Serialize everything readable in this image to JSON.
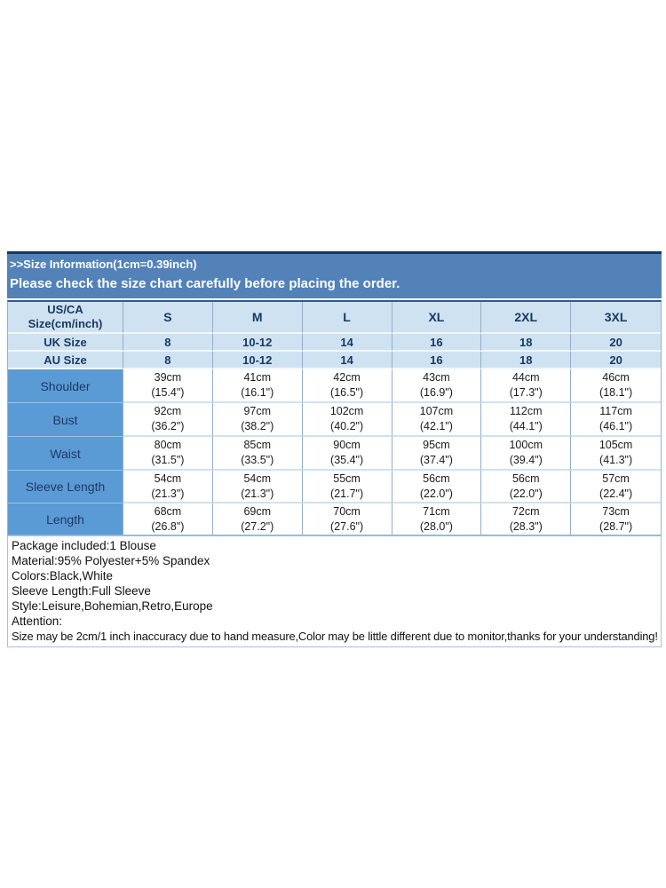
{
  "colors": {
    "band_blue": "#5282B8",
    "band_top_border": "#17375E",
    "light_row_blue": "#CFE2F2",
    "label_column_blue": "#5B9BD5",
    "grid_border": "#94AECB",
    "details_border": "#9DC3E6"
  },
  "header": {
    "line1": ">>Size Information(1cm=0.39inch)",
    "line2": "Please check the size chart carefully before placing the order."
  },
  "size_table": {
    "corner": {
      "line1": "US/CA",
      "line2": "Size(cm/inch)"
    },
    "columns": [
      "S",
      "M",
      "L",
      "XL",
      "2XL",
      "3XL"
    ],
    "size_rows": [
      {
        "label": "UK Size",
        "values": [
          "8",
          "10-12",
          "14",
          "16",
          "18",
          "20"
        ]
      },
      {
        "label": "AU Size",
        "values": [
          "8",
          "10-12",
          "14",
          "16",
          "18",
          "20"
        ]
      }
    ],
    "measure_rows": [
      {
        "label": "Shoulder",
        "cm": [
          "39cm",
          "41cm",
          "42cm",
          "43cm",
          "44cm",
          "46cm"
        ],
        "inch": [
          "(15.4\")",
          "(16.1\")",
          "(16.5\")",
          "(16.9\")",
          "(17.3\")",
          "(18.1\")"
        ]
      },
      {
        "label": "Bust",
        "cm": [
          "92cm",
          "97cm",
          "102cm",
          "107cm",
          "112cm",
          "117cm"
        ],
        "inch": [
          "(36.2\")",
          "(38.2\")",
          "(40.2\")",
          "(42.1\")",
          "(44.1\")",
          "(46.1\")"
        ]
      },
      {
        "label": "Waist",
        "cm": [
          "80cm",
          "85cm",
          "90cm",
          "95cm",
          "100cm",
          "105cm"
        ],
        "inch": [
          "(31.5\")",
          "(33.5\")",
          "(35.4\")",
          "(37.4\")",
          "(39.4\")",
          "(41.3\")"
        ]
      },
      {
        "label": "Sleeve Length",
        "cm": [
          "54cm",
          "54cm",
          "55cm",
          "56cm",
          "56cm",
          "57cm"
        ],
        "inch": [
          "(21.3\")",
          "(21.3\")",
          "(21.7\")",
          "(22.0\")",
          "(22.0\")",
          "(22.4\")"
        ]
      },
      {
        "label": "Length",
        "cm": [
          "68cm",
          "69cm",
          "70cm",
          "71cm",
          "72cm",
          "73cm"
        ],
        "inch": [
          "(26.8\")",
          "(27.2\")",
          "(27.6\")",
          "(28.0\")",
          "(28.3\")",
          "(28.7\")"
        ]
      }
    ]
  },
  "details": {
    "lines": [
      "Package included:1 Blouse",
      "Material:95% Polyester+5% Spandex",
      "Colors:Black,White",
      "Sleeve Length:Full Sleeve",
      "Style:Leisure,Bohemian,Retro,Europe",
      "Attention:",
      "Size may be 2cm/1 inch inaccuracy due to hand measure,Color may be little different due to monitor,thanks for your understanding!"
    ]
  }
}
